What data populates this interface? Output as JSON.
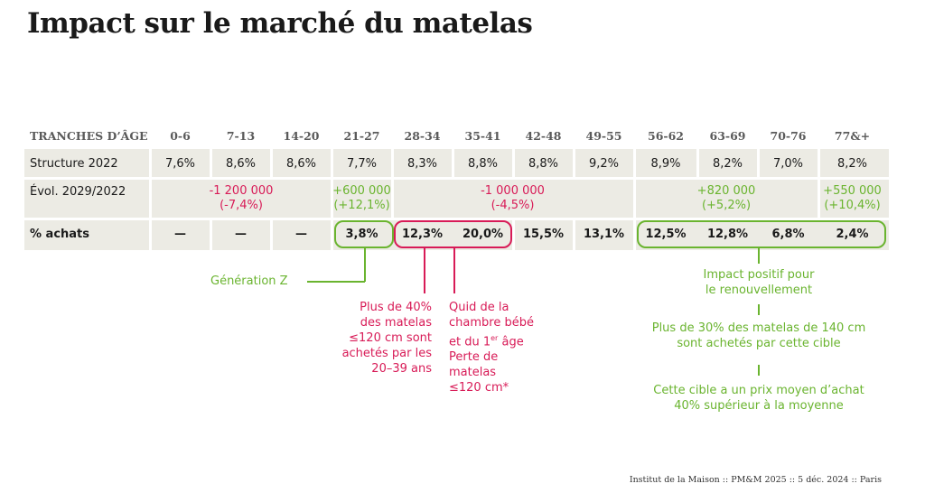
{
  "title": "Impact sur le marché du matelas",
  "header": {
    "label": "TRANCHES D’ÂGE",
    "ages": [
      "0-6",
      "7-13",
      "14-20",
      "21-27",
      "28-34",
      "35-41",
      "42-48",
      "49-55",
      "56-62",
      "63-69",
      "70-76",
      "77&+"
    ]
  },
  "structure": {
    "label": "Structure 2022",
    "values": [
      "7,6%",
      "8,6%",
      "8,6%",
      "7,7%",
      "8,3%",
      "8,8%",
      "8,8%",
      "9,2%",
      "8,9%",
      "8,2%",
      "7,0%",
      "8,2%"
    ]
  },
  "evolution": {
    "label": "Évol. 2029/2022",
    "groups": [
      {
        "line1": "-1 200 000",
        "line2": "(-7,4%)",
        "color": "red"
      },
      {
        "line1": "+600 000",
        "line2": "(+12,1%)",
        "color": "green"
      },
      {
        "line1": "-1 000 000",
        "line2": "(-4,5%)",
        "color": "red"
      },
      {
        "line1": "+820 000",
        "line2": "(+5,2%)",
        "color": "green"
      },
      {
        "line1": "+550 000",
        "line2": "(+10,4%)",
        "color": "green"
      }
    ]
  },
  "achats": {
    "label": "% achats",
    "values": [
      "—",
      "—",
      "—",
      "3,8%",
      "12,3%",
      "20,0%",
      "15,5%",
      "13,1%",
      "12,5%",
      "12,8%",
      "6,8%",
      "2,4%"
    ]
  },
  "annotations": {
    "genz": "Génération Z",
    "red1": [
      "Plus de 40%",
      "des matelas",
      "≤120 cm sont",
      "achetés par les",
      "20–39 ans"
    ],
    "red2": {
      "line1": "Quid de la",
      "line2": "chambre bébé",
      "line3_pre": "et du 1",
      "line3_sup": "er",
      "line3_post": " âge",
      "line4": "Perte de",
      "line5": "matelas",
      "line6": "≤120 cm*"
    },
    "green1": [
      "Impact positif pour",
      "le renouvellement"
    ],
    "green2": [
      "Plus de 30% des matelas de 140 cm",
      "sont achetés par cette cible"
    ],
    "green3": [
      "Cette cible a un prix moyen d’achat",
      "40% supérieur à la moyenne"
    ]
  },
  "colors": {
    "red": "#d81b57",
    "green": "#6ab42f",
    "row_bg": "#ecebe4"
  },
  "footer": "Institut de la Maison :: PM&M 2025 :: 5 déc. 2024 :: Paris"
}
